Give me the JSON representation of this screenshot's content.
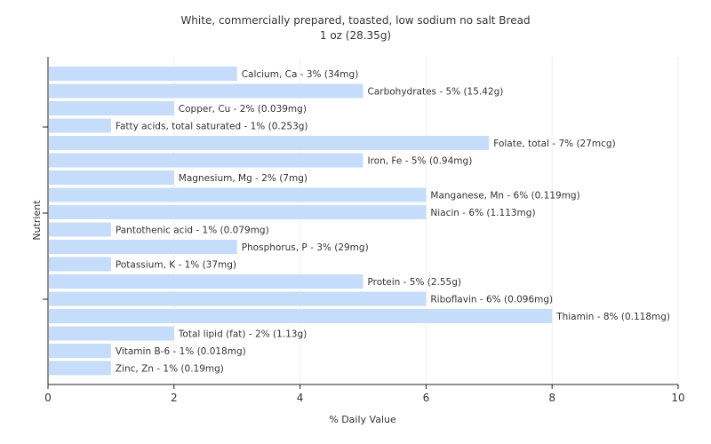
{
  "chart_data": {
    "type": "bar",
    "orientation": "horizontal",
    "title": "White, commercially prepared, toasted, low sodium no salt Bread",
    "subtitle": "1 oz (28.35g)",
    "xlabel": "% Daily Value",
    "ylabel": "Nutrient",
    "xlim": [
      0,
      10
    ],
    "xticks": [
      "0",
      "2",
      "4",
      "6",
      "8",
      "10"
    ],
    "grid": true,
    "bar_color": "#c6dcfb",
    "bars": [
      {
        "name": "Calcium, Ca",
        "value": 3,
        "label": "Calcium, Ca - 3% (34mg)"
      },
      {
        "name": "Carbohydrates",
        "value": 5,
        "label": "Carbohydrates - 5% (15.42g)"
      },
      {
        "name": "Copper, Cu",
        "value": 2,
        "label": "Copper, Cu - 2% (0.039mg)"
      },
      {
        "name": "Fatty acids, total saturated",
        "value": 1,
        "label": "Fatty acids, total saturated - 1% (0.253g)"
      },
      {
        "name": "Folate, total",
        "value": 7,
        "label": "Folate, total - 7% (27mcg)"
      },
      {
        "name": "Iron, Fe",
        "value": 5,
        "label": "Iron, Fe - 5% (0.94mg)"
      },
      {
        "name": "Magnesium, Mg",
        "value": 2,
        "label": "Magnesium, Mg - 2% (7mg)"
      },
      {
        "name": "Manganese, Mn",
        "value": 6,
        "label": "Manganese, Mn - 6% (0.119mg)"
      },
      {
        "name": "Niacin",
        "value": 6,
        "label": "Niacin - 6% (1.113mg)"
      },
      {
        "name": "Pantothenic acid",
        "value": 1,
        "label": "Pantothenic acid - 1% (0.079mg)"
      },
      {
        "name": "Phosphorus, P",
        "value": 3,
        "label": "Phosphorus, P - 3% (29mg)"
      },
      {
        "name": "Potassium, K",
        "value": 1,
        "label": "Potassium, K - 1% (37mg)"
      },
      {
        "name": "Protein",
        "value": 5,
        "label": "Protein - 5% (2.55g)"
      },
      {
        "name": "Riboflavin",
        "value": 6,
        "label": "Riboflavin - 6% (0.096mg)"
      },
      {
        "name": "Thiamin",
        "value": 8,
        "label": "Thiamin - 8% (0.118mg)"
      },
      {
        "name": "Total lipid (fat)",
        "value": 2,
        "label": "Total lipid (fat) - 2% (1.13g)"
      },
      {
        "name": "Vitamin B-6",
        "value": 1,
        "label": "Vitamin B-6 - 1% (0.018mg)"
      },
      {
        "name": "Zinc, Zn",
        "value": 1,
        "label": "Zinc, Zn - 1% (0.19mg)"
      }
    ]
  }
}
